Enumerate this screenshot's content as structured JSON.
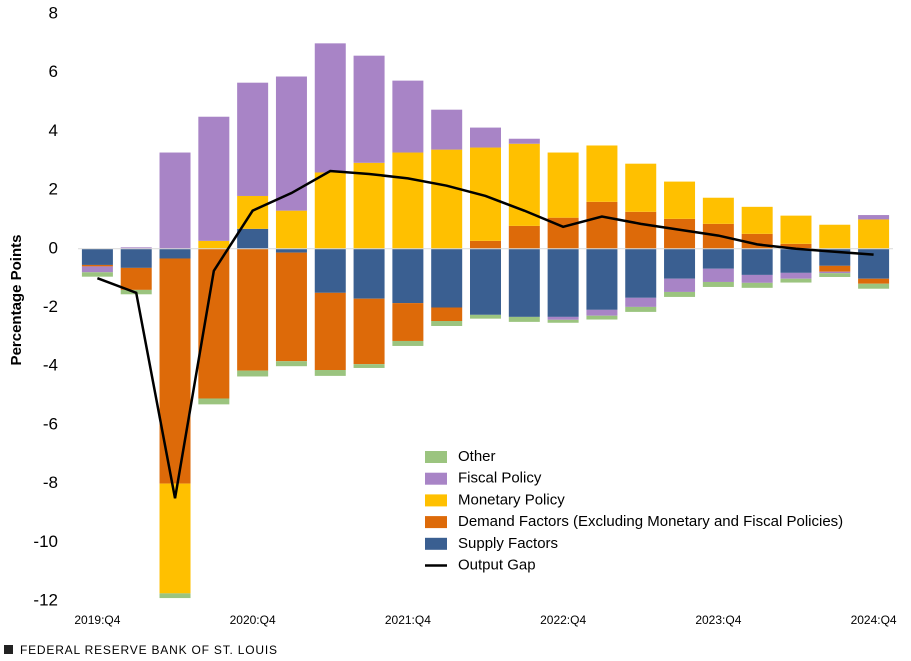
{
  "chart_data": {
    "type": "stacked-bar-line",
    "y_label": "Percentage Points",
    "footer": "FEDERAL RESERVE BANK OF ST. LOUIS",
    "categories": [
      "2019:Q4",
      null,
      null,
      null,
      "2020:Q4",
      null,
      null,
      null,
      "2021:Q4",
      null,
      null,
      null,
      "2022:Q4",
      null,
      null,
      null,
      "2023:Q4",
      null,
      null,
      null,
      "2024:Q4"
    ],
    "series": [
      {
        "name": "Other",
        "color": "#9bc47f",
        "values": [
          -0.15,
          -0.15,
          -0.16,
          -0.2,
          -0.2,
          -0.17,
          -0.2,
          -0.13,
          -0.17,
          -0.17,
          -0.13,
          -0.17,
          -0.1,
          -0.13,
          -0.17,
          -0.17,
          -0.17,
          -0.17,
          -0.13,
          -0.13,
          -0.17
        ]
      },
      {
        "name": "Fiscal Policy",
        "color": "#a884c6",
        "values": [
          -0.2,
          0.05,
          3.28,
          4.23,
          3.86,
          4.57,
          4.4,
          3.65,
          2.45,
          1.36,
          0.68,
          0.17,
          -0.1,
          -0.2,
          -0.31,
          -0.45,
          -0.45,
          -0.27,
          -0.2,
          -0.05,
          0.15
        ]
      },
      {
        "name": "Monetary Policy",
        "color": "#ffc000",
        "values": [
          0,
          0,
          -3.74,
          0.27,
          1.12,
          1.3,
          2.6,
          2.93,
          3.28,
          3.38,
          3.18,
          2.8,
          2.22,
          1.92,
          1.64,
          1.27,
          0.89,
          0.92,
          0.96,
          0.82,
          1.0
        ]
      },
      {
        "name": "Demand Factors (Excluding Monetary and Fiscal Policies)",
        "color": "#dd6a09",
        "values": [
          -0.05,
          -0.75,
          -7.67,
          -5.1,
          -4.15,
          -3.7,
          -2.63,
          -2.23,
          -1.29,
          -0.46,
          0.27,
          0.78,
          1.06,
          1.6,
          1.26,
          1.02,
          0.85,
          0.51,
          0.17,
          -0.2,
          -0.17
        ]
      },
      {
        "name": "Supply Factors",
        "color": "#3a5f91",
        "values": [
          -0.55,
          -0.65,
          -0.33,
          0,
          0.68,
          -0.13,
          -1.5,
          -1.7,
          -1.85,
          -2.0,
          -2.25,
          -2.32,
          -2.32,
          -2.08,
          -1.67,
          -1.02,
          -0.68,
          -0.89,
          -0.82,
          -0.58,
          -1.02
        ]
      }
    ],
    "line": {
      "name": "Output Gap",
      "color": "#000000",
      "values": [
        -1.0,
        -1.5,
        -8.5,
        -0.75,
        1.3,
        1.9,
        2.65,
        2.55,
        2.4,
        2.15,
        1.8,
        1.3,
        0.75,
        1.1,
        0.85,
        0.65,
        0.45,
        0.15,
        0.0,
        -0.1,
        -0.2
      ]
    },
    "ylim": [
      -12,
      8
    ],
    "yticks": [
      -12,
      -10,
      -8,
      -6,
      -4,
      -2,
      0,
      2,
      4,
      6,
      8
    ]
  }
}
